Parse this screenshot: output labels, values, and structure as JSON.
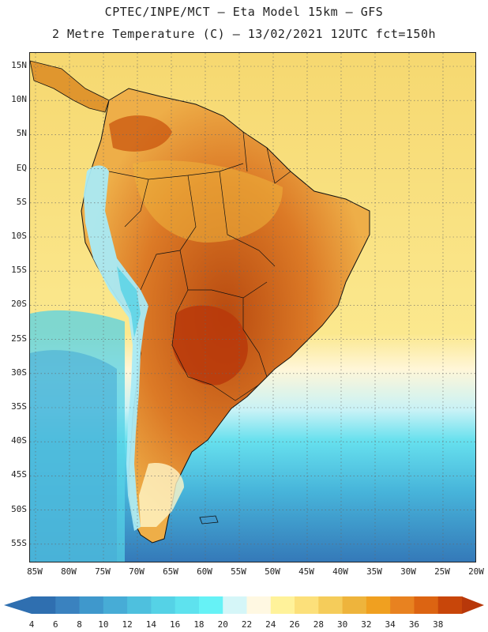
{
  "header": {
    "line1": "CPTEC/INPE/MCT –  Eta Model 15km – GFS",
    "line2": "2 Metre Temperature (C) – 13/02/2021 12UTC fct=150h"
  },
  "map": {
    "lat_labels": [
      "15N",
      "10N",
      "5N",
      "EQ",
      "5S",
      "10S",
      "15S",
      "20S",
      "25S",
      "30S",
      "35S",
      "40S",
      "45S",
      "50S",
      "55S"
    ],
    "lon_labels": [
      "85W",
      "80W",
      "75W",
      "70W",
      "65W",
      "60W",
      "55W",
      "50W",
      "45W",
      "40W",
      "35W",
      "30W",
      "25W",
      "20W"
    ],
    "ocean_north_color": "#f8de7a",
    "ocean_south_color": "#55c8e6",
    "land_hot_color": "#d9782a",
    "andes_color": "#a9eaf5"
  },
  "colorbar": {
    "labels": [
      "4",
      "6",
      "8",
      "10",
      "12",
      "14",
      "16",
      "18",
      "20",
      "22",
      "24",
      "26",
      "28",
      "30",
      "32",
      "34",
      "36",
      "38"
    ],
    "colors": [
      "#2f6fb0",
      "#3a82bf",
      "#3f98cc",
      "#47acd6",
      "#4ec0de",
      "#55d2e6",
      "#5ee2ee",
      "#66f2f6",
      "#d5f6f8",
      "#fff8e2",
      "#fff29a",
      "#fce07a",
      "#f5cc5a",
      "#eeb43c",
      "#f0a020",
      "#e88220",
      "#dc6412",
      "#c8460a",
      "#b8380a"
    ]
  }
}
